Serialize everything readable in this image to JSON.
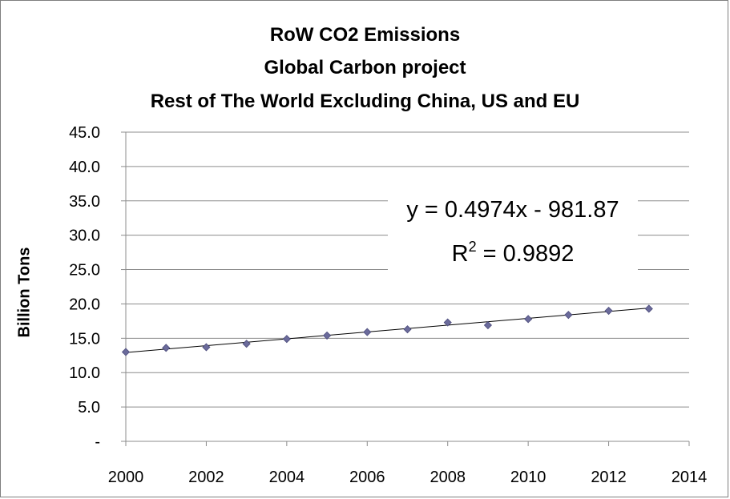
{
  "chart_data": {
    "type": "scatter",
    "title_lines": [
      "RoW CO2 Emissions",
      "Global Carbon project",
      "Rest of The World Excluding China, US and EU"
    ],
    "xlabel": "",
    "ylabel": "Billion Tons",
    "xlim": [
      2000,
      2014
    ],
    "ylim": [
      0,
      45
    ],
    "x_ticks": [
      "2000",
      "2002",
      "2004",
      "2006",
      "2008",
      "2010",
      "2012",
      "2014"
    ],
    "x_tick_values": [
      2000,
      2002,
      2004,
      2006,
      2008,
      2010,
      2012,
      2014
    ],
    "y_ticks": [
      "-",
      "5.0",
      "10.0",
      "15.0",
      "20.0",
      "25.0",
      "30.0",
      "35.0",
      "40.0",
      "45.0"
    ],
    "y_tick_values": [
      0,
      5,
      10,
      15,
      20,
      25,
      30,
      35,
      40,
      45
    ],
    "grid": true,
    "series": [
      {
        "x": [
          2000,
          2001,
          2002,
          2003,
          2004,
          2005,
          2006,
          2007,
          2008,
          2009,
          2010,
          2011,
          2012,
          2013
        ],
        "y": [
          13.0,
          13.6,
          13.7,
          14.2,
          14.9,
          15.4,
          15.9,
          16.3,
          17.3,
          16.9,
          17.8,
          18.4,
          19.0,
          19.3
        ],
        "marker": "diamond",
        "color": "#6b6b9b"
      }
    ],
    "trendline": {
      "type": "linear",
      "slope": 0.4974,
      "intercept": -981.87,
      "equation_text": "y = 0.4974x - 981.87",
      "r2_label": "R",
      "r2_sup": "2",
      "r2_rest": " = 0.9892",
      "color": "#000000"
    }
  }
}
